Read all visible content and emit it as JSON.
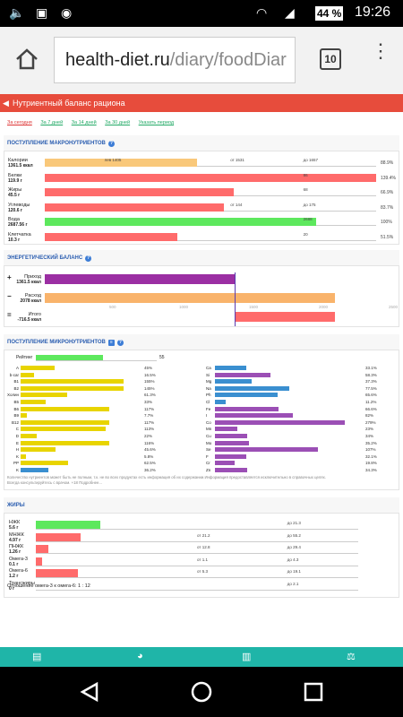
{
  "status": {
    "battery": "44 %",
    "time": "19:26"
  },
  "browser": {
    "url_host": "health-diet.ru",
    "url_path": "/diary/foodDiar",
    "tab_count": "10"
  },
  "header": {
    "title": "Нутриентный баланс рациона"
  },
  "periods": [
    "За сегодня",
    "За 7 дней",
    "За 14 дней",
    "За 30 дней",
    "Указать период"
  ],
  "macro": {
    "title": "ПОСТУПЛЕНИЕ МАКРОНУТРИЕНТОВ",
    "rows": [
      {
        "name": "Калории",
        "value": "1361.5 ккал",
        "pct": "88.9%",
        "fill": 0.46,
        "color": "#f9c87a",
        "marks": [
          "лев 1405",
          "от 1531",
          "до 1657"
        ]
      },
      {
        "name": "Белки",
        "value": "119.9 г",
        "pct": "139.4%",
        "fill": 1.0,
        "color": "#ff6b6b",
        "marks": [
          "",
          "",
          "86"
        ]
      },
      {
        "name": "Жиры",
        "value": "45.5 г",
        "pct": "66.9%",
        "fill": 0.57,
        "color": "#ff6b6b",
        "marks": [
          "",
          "",
          "68"
        ]
      },
      {
        "name": "Углеводы",
        "value": "120.6 г",
        "pct": "83.7%",
        "fill": 0.54,
        "color": "#ff6b6b",
        "marks": [
          "",
          "от 144",
          "до 175"
        ]
      },
      {
        "name": "Вода",
        "value": "2687.56 г",
        "pct": "100%",
        "fill": 0.82,
        "color": "#5de85d",
        "marks": [
          "",
          "",
          "2688"
        ]
      },
      {
        "name": "Клетчатка",
        "value": "10.3 г",
        "pct": "51.5%",
        "fill": 0.4,
        "color": "#ff6b6b",
        "marks": [
          "",
          "",
          "20"
        ]
      }
    ]
  },
  "energy": {
    "title": "ЭНЕРГЕТИЧЕСКИЙ БАЛАНС",
    "rows": [
      {
        "sign": "+",
        "name": "Приход",
        "value": "1361.5 ккал",
        "color": "#9b2fa3"
      },
      {
        "sign": "−",
        "name": "Расход",
        "value": "2078 ккал",
        "color": "#f9b36b"
      },
      {
        "sign": "=",
        "name": "Итого",
        "value": "-716.5 ккал",
        "color": "#ff6b6b"
      }
    ],
    "ticks": [
      "500",
      "1000",
      "1500",
      "2000",
      "2500"
    ]
  },
  "micro": {
    "title": "ПОСТУПЛЕНИЕ МИКРОНУТРИЕНТОВ",
    "reitent_label": "Рейтинг",
    "reitent_value": "55",
    "left": [
      {
        "n": "A",
        "p": "45%",
        "f": 0.33,
        "c": "#e8d400"
      },
      {
        "n": "b-car",
        "p": "16.5%",
        "f": 0.13,
        "c": "#e8d400"
      },
      {
        "n": "B1",
        "p": "155%",
        "f": 1.0,
        "c": "#e8d400"
      },
      {
        "n": "B2",
        "p": "145%",
        "f": 1.0,
        "c": "#e8d400"
      },
      {
        "n": "Холин",
        "p": "61.3%",
        "f": 0.45,
        "c": "#e8d400"
      },
      {
        "n": "B5",
        "p": "33%",
        "f": 0.24,
        "c": "#e8d400"
      },
      {
        "n": "B6",
        "p": "117%",
        "f": 0.86,
        "c": "#e8d400"
      },
      {
        "n": "B9",
        "p": "7.7%",
        "f": 0.06,
        "c": "#e8d400"
      },
      {
        "n": "B12",
        "p": "117%",
        "f": 0.86,
        "c": "#e8d400"
      },
      {
        "n": "C",
        "p": "113%",
        "f": 0.83,
        "c": "#e8d400"
      },
      {
        "n": "D",
        "p": "22%",
        "f": 0.16,
        "c": "#e8d400"
      },
      {
        "n": "E",
        "p": "116%",
        "f": 0.86,
        "c": "#e8d400"
      },
      {
        "n": "H",
        "p": "45.6%",
        "f": 0.34,
        "c": "#e8d400"
      },
      {
        "n": "K",
        "p": "5.8%",
        "f": 0.05,
        "c": "#e8d400"
      },
      {
        "n": "PP",
        "p": "62.5%",
        "f": 0.46,
        "c": "#e8d400"
      },
      {
        "n": "K",
        "p": "36.2%",
        "f": 0.27,
        "c": "#3a8fd0"
      }
    ],
    "right": [
      {
        "n": "Ca",
        "p": "33.1%",
        "f": 0.24,
        "c": "#3a8fd0"
      },
      {
        "n": "Si",
        "p": "58.3%",
        "f": 0.43,
        "c": "#9b4fb5"
      },
      {
        "n": "Mg",
        "p": "37.3%",
        "f": 0.28,
        "c": "#3a8fd0"
      },
      {
        "n": "Na",
        "p": "77.5%",
        "f": 0.57,
        "c": "#3a8fd0"
      },
      {
        "n": "Ph",
        "p": "65.6%",
        "f": 0.48,
        "c": "#3a8fd0"
      },
      {
        "n": "Cl",
        "p": "11.2%",
        "f": 0.08,
        "c": "#3a8fd0"
      },
      {
        "n": "Fe",
        "p": "66.6%",
        "f": 0.49,
        "c": "#9b4fb5"
      },
      {
        "n": "I",
        "p": "82%",
        "f": 0.6,
        "c": "#9b4fb5"
      },
      {
        "n": "Co",
        "p": "279%",
        "f": 1.0,
        "c": "#9b4fb5"
      },
      {
        "n": "Mn",
        "p": "23%",
        "f": 0.17,
        "c": "#9b4fb5"
      },
      {
        "n": "Cu",
        "p": "34%",
        "f": 0.25,
        "c": "#9b4fb5"
      },
      {
        "n": "Mo",
        "p": "35.2%",
        "f": 0.26,
        "c": "#9b4fb5"
      },
      {
        "n": "Se",
        "p": "107%",
        "f": 0.79,
        "c": "#9b4fb5"
      },
      {
        "n": "F",
        "p": "32.1%",
        "f": 0.24,
        "c": "#9b4fb5"
      },
      {
        "n": "Cr",
        "p": "19.8%",
        "f": 0.15,
        "c": "#9b4fb5"
      },
      {
        "n": "Zn",
        "p": "34.3%",
        "f": 0.25,
        "c": "#9b4fb5"
      }
    ],
    "note1": "Количество нутриентов может быть не полным, т.к. не во всех продуктах есть информация об их содержании.Информация предоставляется исключительно в справочных целях.",
    "note2": "Всегда консультируйтесь с врачом. +18 Подробнее..."
  },
  "fats": {
    "title": "ЖИРЫ",
    "rows": [
      {
        "name": "НЖК",
        "value": "5.6 г",
        "fill": 0.2,
        "color": "#5de85d",
        "from": "",
        "to": "до 21.3"
      },
      {
        "name": "МНЖК",
        "value": "4.97 г",
        "fill": 0.14,
        "color": "#ff6b6b",
        "from": "от 21.2",
        "to": "до 55.2"
      },
      {
        "name": "ПНЖК",
        "value": "1.26 г",
        "fill": 0.04,
        "color": "#ff6b6b",
        "from": "от 12.8",
        "to": "до 29.4"
      },
      {
        "name": "Омега-3",
        "value": "0.1 г",
        "fill": 0.02,
        "color": "#ff6b6b",
        "from": "от 1.1",
        "to": "до 4.3"
      },
      {
        "name": "Омега-6",
        "value": "1.2 г",
        "fill": 0.13,
        "color": "#ff6b6b",
        "from": "от 5.3",
        "to": "до 19.1"
      },
      {
        "name": "Трансжиры",
        "value": "0 г",
        "fill": 0,
        "color": "#ff6b6b",
        "from": "",
        "to": "до 2.1"
      }
    ],
    "ratio": "Отношение омега-3 к омега-6: 1 : 12"
  }
}
